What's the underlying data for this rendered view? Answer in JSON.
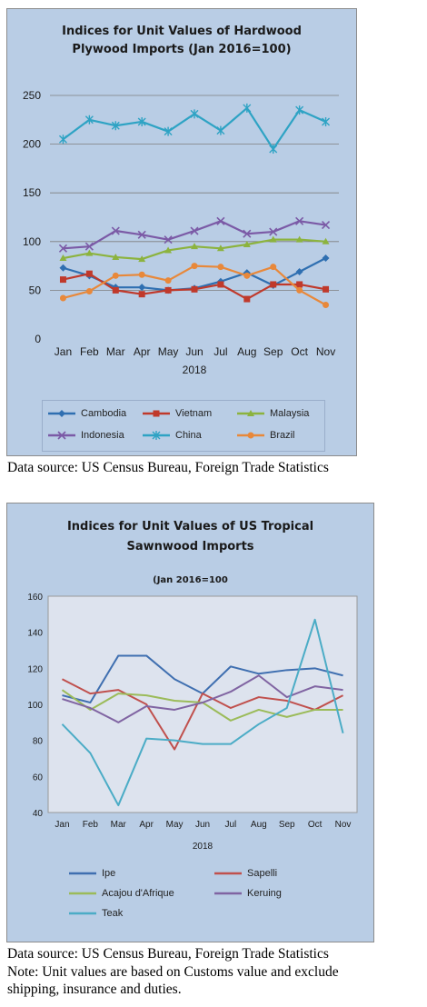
{
  "chart_data": [
    {
      "type": "line",
      "title_lines": [
        "Indices for Unit Values of Hardwood",
        "Plywood Imports (Jan 2016=100)"
      ],
      "xlabel": "2018",
      "categories": [
        "Jan",
        "Feb",
        "Mar",
        "Apr",
        "May",
        "Jun",
        "Jul",
        "Aug",
        "Sep",
        "Oct",
        "Nov"
      ],
      "ylim": [
        0,
        250
      ],
      "yticks": [
        0,
        50,
        100,
        150,
        200,
        250
      ],
      "grid": true,
      "legend_position": "bottom",
      "series": [
        {
          "name": "Cambodia",
          "color": "#2f6fb1",
          "marker": "diamond",
          "values": [
            73,
            65,
            53,
            53,
            50,
            52,
            59,
            68,
            55,
            69,
            83
          ]
        },
        {
          "name": "Vietnam",
          "color": "#c0392b",
          "marker": "square",
          "values": [
            61,
            67,
            50,
            46,
            50,
            51,
            56,
            41,
            56,
            56,
            51
          ]
        },
        {
          "name": "Malaysia",
          "color": "#8cb33e",
          "marker": "triangle",
          "values": [
            83,
            88,
            84,
            82,
            91,
            95,
            93,
            97,
            102,
            102,
            100
          ]
        },
        {
          "name": "Indonesia",
          "color": "#7b5aa6",
          "marker": "x",
          "values": [
            93,
            95,
            111,
            107,
            102,
            111,
            121,
            108,
            110,
            121,
            117
          ]
        },
        {
          "name": "China",
          "color": "#2ea3c4",
          "marker": "star",
          "values": [
            205,
            225,
            219,
            223,
            213,
            231,
            214,
            237,
            195,
            235,
            223
          ]
        },
        {
          "name": "Brazil",
          "color": "#e8883a",
          "marker": "circle",
          "values": [
            42,
            49,
            65,
            66,
            60,
            75,
            74,
            65,
            74,
            50,
            35
          ]
        }
      ]
    },
    {
      "type": "line",
      "title_lines": [
        "Indices for Unit Values of US Tropical",
        "Sawnwood Imports"
      ],
      "subtitle": "(Jan 2016=100",
      "xlabel": "2018",
      "categories": [
        "Jan",
        "Feb",
        "Mar",
        "Apr",
        "May",
        "Jun",
        "Jul",
        "Aug",
        "Sep",
        "Oct",
        "Nov"
      ],
      "ylim": [
        40,
        160
      ],
      "yticks": [
        40,
        60,
        80,
        100,
        120,
        140,
        160
      ],
      "grid": false,
      "legend_position": "bottom",
      "series": [
        {
          "name": "Ipe",
          "color": "#3f6fb0",
          "values": [
            105,
            101,
            127,
            127,
            114,
            106,
            121,
            117,
            119,
            120,
            116
          ]
        },
        {
          "name": "Sapelli",
          "color": "#c0504d",
          "values": [
            114,
            106,
            108,
            100,
            75,
            106,
            98,
            104,
            102,
            97,
            105
          ]
        },
        {
          "name": "Acajou d'Afrique",
          "color": "#9bbb59",
          "values": [
            108,
            97,
            106,
            105,
            102,
            101,
            91,
            97,
            93,
            97,
            97
          ]
        },
        {
          "name": "Keruing",
          "color": "#8064a2",
          "values": [
            103,
            98,
            90,
            99,
            97,
            101,
            107,
            116,
            104,
            110,
            108
          ]
        },
        {
          "name": "Teak",
          "color": "#4bacc6",
          "values": [
            89,
            73,
            44,
            81,
            80,
            78,
            78,
            89,
            98,
            147,
            84
          ]
        }
      ]
    }
  ],
  "captions": {
    "source1": "Data source: US Census Bureau, Foreign Trade Statistics",
    "source2": "Data source: US Census Bureau, Foreign Trade Statistics",
    "note_line1": "Note: Unit values are based on Customs value and exclude",
    "note_line2": "shipping, insurance and duties."
  }
}
